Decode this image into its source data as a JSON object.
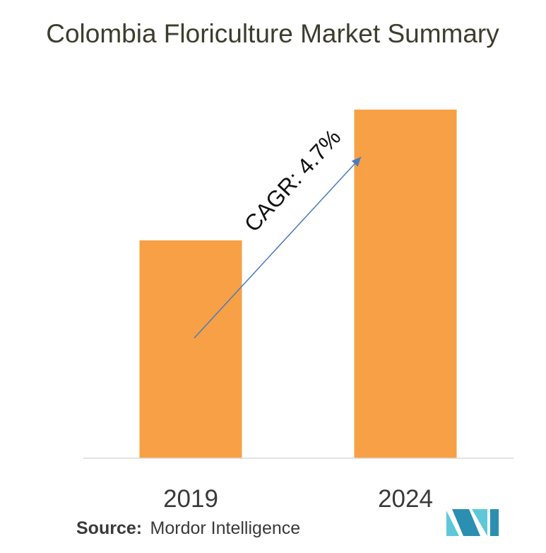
{
  "chart_data": {
    "type": "bar",
    "title": "Colombia Floriculture Market Summary",
    "categories": [
      "2019",
      "2024"
    ],
    "values": [
      100,
      160
    ],
    "annotation": "CAGR: 4.7%",
    "grid": false,
    "bar_color": "#f7a045",
    "arrow_color": "#4a7abf"
  },
  "source": {
    "label": "Source:",
    "value": "Mordor Intelligence"
  },
  "logo": {
    "name": "mordor-intelligence-logo",
    "color_light": "#5ec8d8",
    "color_dark": "#2a8fb0"
  }
}
